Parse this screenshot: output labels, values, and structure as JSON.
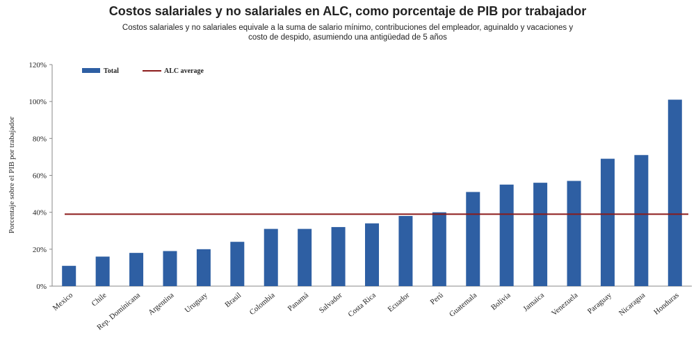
{
  "chart_data": {
    "type": "bar",
    "title": "Costos salariales y no salariales en ALC, como porcentaje de PIB por trabajador",
    "subtitle": [
      "Costos salariales y no salariales equivale a la suma de salario mínimo,  contribuciones del empleador,  aguinaldo  y vacaciones y",
      "costo de despido, asumiendo una antigüedad de 5 años"
    ],
    "ylabel": "Porcentaje sobre el PIB por trabajador",
    "categories": [
      "Mexico",
      "Chile",
      "Rep. Dominicana",
      "Argentina",
      "Uruguay",
      "Brasil",
      "Colombia",
      "Panamá",
      "Salvador",
      "Costa Rica",
      "Ecuador",
      "Perú",
      "Guatemala",
      "Bolivia",
      "Jamaica",
      "Venezuela",
      "Paraguay",
      "Nicaragua",
      "Honduras"
    ],
    "series": [
      {
        "name": "Total",
        "color": "#2e5fa3",
        "values": [
          11,
          16,
          18,
          19,
          20,
          24,
          31,
          31,
          32,
          34,
          38,
          40,
          51,
          55,
          56,
          57,
          69,
          71,
          101
        ]
      }
    ],
    "average": {
      "name": "ALC average",
      "color": "#8b1a1a",
      "value": 39
    },
    "ylim": [
      0,
      120
    ],
    "yticks": [
      {
        "value": 0,
        "label": "0%"
      },
      {
        "value": 20,
        "label": "20%"
      },
      {
        "value": 40,
        "label": "40%"
      },
      {
        "value": 60,
        "label": "60%"
      },
      {
        "value": 80,
        "label": "80%"
      },
      {
        "value": 100,
        "label": "100%"
      },
      {
        "value": 120,
        "label": "120%"
      }
    ]
  }
}
